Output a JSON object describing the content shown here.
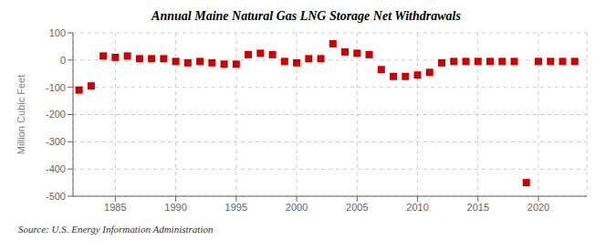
{
  "chart_data": {
    "type": "scatter",
    "title": "Annual Maine Natural Gas LNG Storage Net Withdrawals",
    "ylabel": "Million Cubic Feet",
    "annotations": [
      "Source: U.S. Energy Information Administration"
    ],
    "x": [
      1982,
      1983,
      1984,
      1985,
      1986,
      1987,
      1988,
      1989,
      1990,
      1991,
      1992,
      1993,
      1994,
      1995,
      1996,
      1997,
      1998,
      1999,
      2000,
      2001,
      2002,
      2003,
      2004,
      2005,
      2006,
      2007,
      2008,
      2009,
      2010,
      2011,
      2012,
      2013,
      2014,
      2015,
      2016,
      2017,
      2018,
      2019,
      2020,
      2021,
      2022,
      2023
    ],
    "values": [
      -110,
      -95,
      15,
      10,
      15,
      5,
      5,
      5,
      -5,
      -10,
      -5,
      -10,
      -15,
      -15,
      20,
      25,
      20,
      -5,
      -10,
      5,
      5,
      60,
      30,
      25,
      20,
      -35,
      -60,
      -60,
      -55,
      -45,
      -10,
      -5,
      -5,
      -5,
      -5,
      -5,
      -5,
      -450,
      -5,
      -5,
      -5,
      -5
    ],
    "color": "#cc0000",
    "marker": "square",
    "xlim": [
      1981.5,
      2024
    ],
    "ylim": [
      -500,
      100
    ],
    "xticks": [
      1985,
      1990,
      1995,
      2000,
      2005,
      2010,
      2015,
      2020
    ],
    "yticks": [
      100,
      0,
      -100,
      -200,
      -300,
      -400,
      -500
    ],
    "grid": true
  }
}
